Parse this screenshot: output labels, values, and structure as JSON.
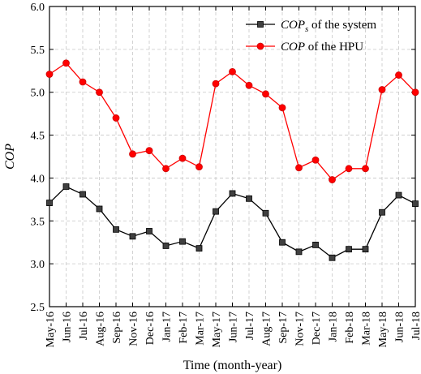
{
  "chart_data": {
    "type": "line",
    "x": [
      "May-16",
      "Jun-16",
      "Jul-16",
      "Aug-16",
      "Sep-16",
      "Nov-16",
      "Dec-16",
      "Jan-17",
      "Feb-17",
      "Mar-17",
      "May-17",
      "Jun-17",
      "Jul-17",
      "Aug-17",
      "Sep-17",
      "Nov-17",
      "Dec-17",
      "Jan-18",
      "Feb-18",
      "Mar-18",
      "May-18",
      "Jun-18",
      "Jul-18"
    ],
    "series": [
      {
        "name_main": "COP",
        "name_sub": "s",
        "name_rest": " of the system",
        "color": "#000000",
        "marker_fill": "#404040",
        "marker": "square",
        "values": [
          3.71,
          3.9,
          3.81,
          3.64,
          3.4,
          3.32,
          3.38,
          3.21,
          3.26,
          3.18,
          3.61,
          3.82,
          3.76,
          3.59,
          3.25,
          3.14,
          3.22,
          3.07,
          3.17,
          3.17,
          3.6,
          3.8,
          3.7
        ]
      },
      {
        "name_main": "COP",
        "name_sub": "",
        "name_rest": " of the HPU",
        "color": "#ff0000",
        "marker_fill": "#ff0000",
        "marker": "circle",
        "values": [
          5.21,
          5.34,
          5.12,
          5.0,
          4.7,
          4.28,
          4.32,
          4.11,
          4.23,
          4.13,
          5.1,
          5.24,
          5.08,
          4.98,
          4.82,
          4.12,
          4.21,
          3.98,
          4.11,
          4.11,
          5.03,
          5.2,
          5.0
        ]
      }
    ],
    "xlabel": "Time (month-year)",
    "ylabel": "COP",
    "ylim": [
      2.5,
      6.0
    ],
    "yticks": [
      "2.5",
      "3.0",
      "3.5",
      "4.0",
      "4.5",
      "5.0",
      "5.5",
      "6.0"
    ],
    "grid": true,
    "legend_position": "top-right"
  }
}
